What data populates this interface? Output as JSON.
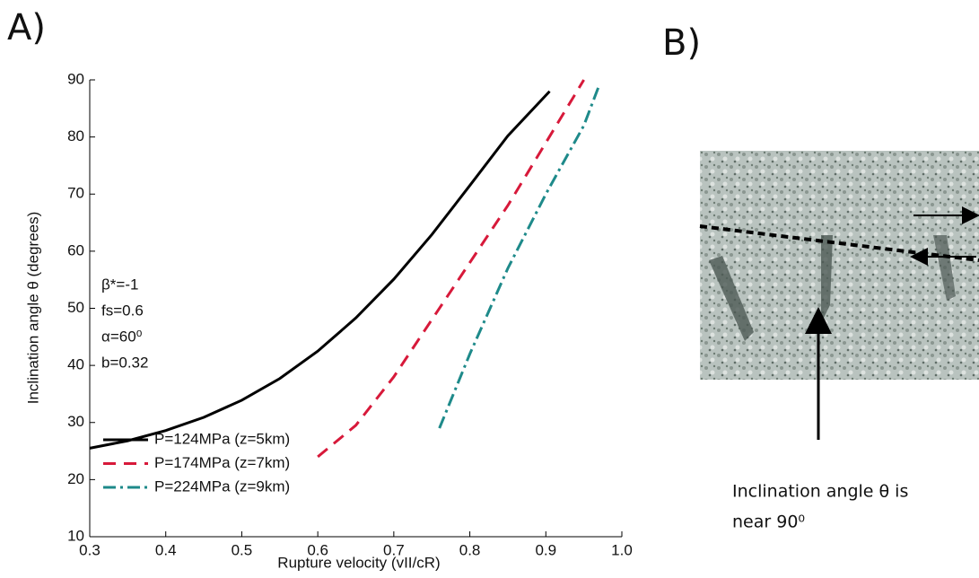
{
  "panel_labels": [
    "A)",
    "B)"
  ],
  "caption": [
    "Inclination angle θ is",
    "near 90⁰"
  ],
  "chart_data": {
    "type": "line",
    "x_label": "Rupture velocity (vII/cR)",
    "y_label": "Inclination angle θ (degrees)",
    "annotations": [
      "β*=-1",
      "fs=0.6",
      "α=60⁰",
      "b=0.32"
    ],
    "xlim": [
      0.3,
      1.0
    ],
    "ylim": [
      10,
      90
    ],
    "xticks": [
      0.3,
      0.4,
      0.5,
      0.6,
      0.7,
      0.8,
      0.9,
      {
        "value": 1.0,
        "label": "1.0"
      }
    ],
    "yticks": [
      10,
      20,
      30,
      40,
      50,
      60,
      70,
      80,
      90
    ],
    "legend": "lower left",
    "series": [
      {
        "name": "P=124MPa (z=5km)",
        "color": "#000000",
        "dash": "solid",
        "x": [
          0.3,
          0.35,
          0.4,
          0.45,
          0.5,
          0.55,
          0.6,
          0.65,
          0.7,
          0.75,
          0.8,
          0.85,
          0.905
        ],
        "values": [
          25.5,
          26.8,
          28.6,
          30.9,
          33.9,
          37.7,
          42.5,
          48.3,
          55.1,
          62.9,
          71.5,
          80.2,
          88
        ]
      },
      {
        "name": "P=174MPa (z=7km)",
        "color": "#d7193a",
        "dash": "dashed",
        "x": [
          0.6,
          0.65,
          0.7,
          0.75,
          0.8,
          0.85,
          0.9,
          0.95
        ],
        "values": [
          24,
          29.5,
          38,
          48,
          58,
          68,
          79,
          90
        ]
      },
      {
        "name": "P=224MPa (z=9km)",
        "color": "#1e8a8a",
        "dash": "dashdot",
        "x": [
          0.76,
          0.8,
          0.85,
          0.9,
          0.95,
          0.97
        ],
        "values": [
          29,
          42,
          57,
          70,
          82,
          89
        ]
      }
    ]
  }
}
